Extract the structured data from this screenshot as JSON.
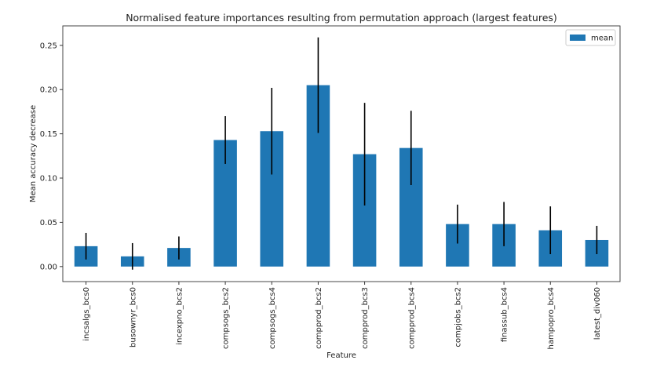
{
  "chart_data": {
    "type": "bar",
    "title": "Normalised feature importances resulting from permutation approach (largest features)",
    "xlabel": "Feature",
    "ylabel": "Mean accuracy decrease",
    "ylim": [
      -0.017,
      0.272
    ],
    "yticks": [
      0.0,
      0.05,
      0.1,
      0.15,
      0.2,
      0.25
    ],
    "ytick_labels": [
      "0.00",
      "0.05",
      "0.10",
      "0.15",
      "0.20",
      "0.25"
    ],
    "grid": false,
    "legend": {
      "placement": "top-right",
      "entries": [
        "mean"
      ]
    },
    "bar_color": "#1f77b4",
    "errorbar_color": "#000000",
    "categories": [
      "incsalgs_bcs0",
      "busownyr_bcs0",
      "incexpno_bcs2",
      "compsogs_bcs2",
      "compsogs_bcs4",
      "compprod_bcs2",
      "compprod_bcs3",
      "compprod_bcs4",
      "compjobs_bcs2",
      "finassub_bcs4",
      "hampopro_bcs4",
      "latest_div060"
    ],
    "series": [
      {
        "name": "mean",
        "values": [
          0.023,
          0.0115,
          0.021,
          0.143,
          0.153,
          0.205,
          0.127,
          0.134,
          0.048,
          0.048,
          0.041,
          0.03
        ],
        "errors": [
          0.015,
          0.015,
          0.013,
          0.027,
          0.049,
          0.054,
          0.058,
          0.042,
          0.022,
          0.025,
          0.027,
          0.016
        ]
      }
    ]
  }
}
